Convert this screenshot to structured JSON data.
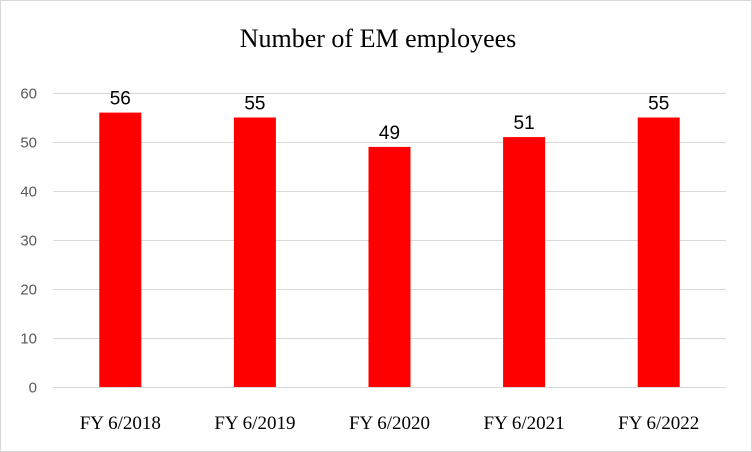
{
  "chart_data": {
    "type": "bar",
    "title": "Number of EM employees",
    "categories": [
      "FY 6/2018",
      "FY 6/2019",
      "FY 6/2020",
      "FY 6/2021",
      "FY 6/2022"
    ],
    "values": [
      56,
      55,
      49,
      51,
      55
    ],
    "data_labels": [
      "56",
      "55",
      "49",
      "51",
      "55"
    ],
    "ylim": [
      0,
      60
    ],
    "yticks": [
      0,
      10,
      20,
      30,
      40,
      50,
      60
    ],
    "grid": true,
    "legend": "none",
    "bar_color": "#ff0000"
  }
}
